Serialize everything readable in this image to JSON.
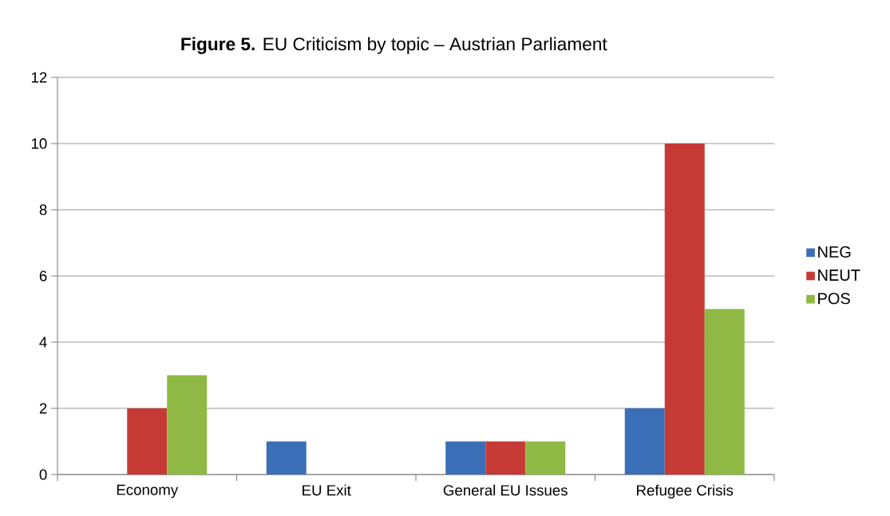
{
  "chart_data": {
    "type": "bar",
    "title": "**Figure 5.** EU Criticism by topic – Austrian Parliament",
    "categories": [
      "Economy",
      "EU Exit",
      "General EU Issues",
      "Refugee Crisis"
    ],
    "series": [
      {
        "name": "NEG",
        "color": "#3a6fb8",
        "values": [
          0,
          1,
          1,
          2
        ]
      },
      {
        "name": "NEUT",
        "color": "#c63a36",
        "values": [
          2,
          0,
          1,
          10
        ]
      },
      {
        "name": "POS",
        "color": "#8fb944",
        "values": [
          3,
          0,
          1,
          5
        ]
      }
    ],
    "ylim": [
      0,
      12
    ],
    "yticks": [
      0,
      2,
      4,
      6,
      8,
      10,
      12
    ],
    "grid": "y",
    "legend": "right"
  }
}
